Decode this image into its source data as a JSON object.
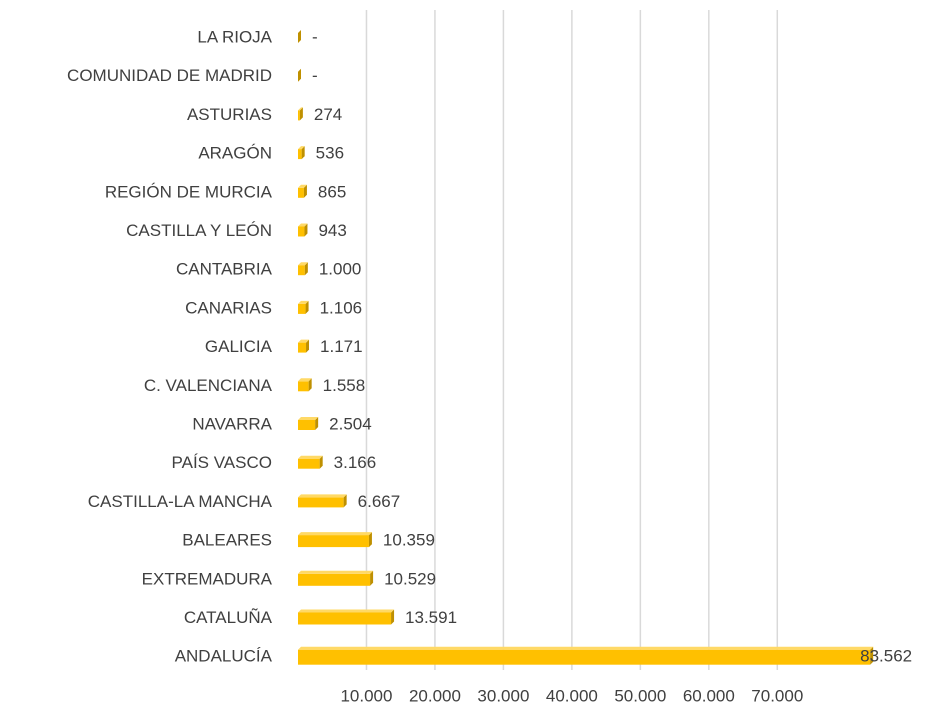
{
  "chart_data": {
    "type": "bar",
    "orientation": "horizontal",
    "categories": [
      "LA RIOJA",
      "COMUNIDAD DE MADRID",
      "ASTURIAS",
      "ARAGÓN",
      "REGIÓN DE MURCIA",
      "CASTILLA Y LEÓN",
      "CANTABRIA",
      "CANARIAS",
      "GALICIA",
      "C. VALENCIANA",
      "NAVARRA",
      "PAÍS VASCO",
      "CASTILLA-LA MANCHA",
      "BALEARES",
      "EXTREMADURA",
      "CATALUÑA",
      "ANDALUCÍA"
    ],
    "values": [
      0,
      0,
      274,
      536,
      865,
      943,
      1000,
      1106,
      1171,
      1558,
      2504,
      3166,
      6667,
      10359,
      10529,
      13591,
      83562
    ],
    "value_labels": [
      "-",
      "-",
      "274",
      "536",
      "865",
      "943",
      "1.000",
      "1.106",
      "1.171",
      "1.558",
      "2.504",
      "3.166",
      "6.667",
      "10.359",
      "10.529",
      "13.591",
      "83.562"
    ],
    "color": "#ffc000",
    "xlim": [
      0,
      85000
    ],
    "xticks": [
      {
        "value": 10000,
        "label": "10.000"
      },
      {
        "value": 20000,
        "label": "20.000"
      },
      {
        "value": 30000,
        "label": "30.000"
      },
      {
        "value": 40000,
        "label": "40.000"
      },
      {
        "value": 50000,
        "label": "50.000"
      },
      {
        "value": 60000,
        "label": "60.000"
      },
      {
        "value": 70000,
        "label": "70.000"
      }
    ],
    "grid": true
  }
}
